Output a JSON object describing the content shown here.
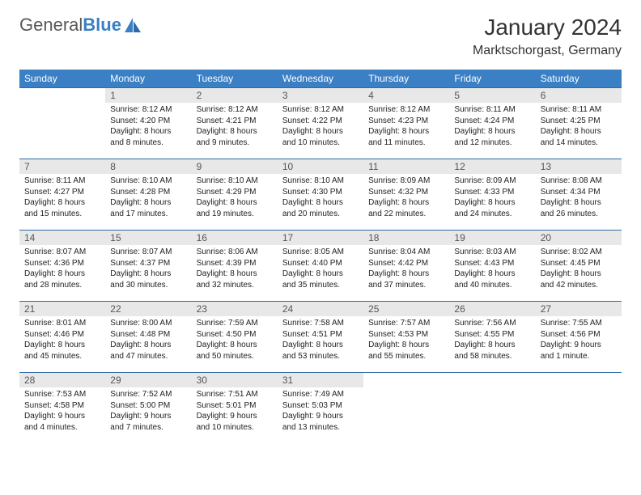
{
  "logo": {
    "word1": "General",
    "word2": "Blue"
  },
  "title": "January 2024",
  "location": "Marktschorgast, Germany",
  "colors": {
    "header_bg": "#3b7fc4",
    "header_text": "#ffffff",
    "row_border": "#2f6aa8",
    "daynum_bg": "#e8e8e8",
    "daynum_text": "#555555",
    "body_text": "#222222",
    "title_text": "#333333",
    "page_bg": "#ffffff"
  },
  "typography": {
    "title_fontsize": 28,
    "location_fontsize": 16,
    "dow_fontsize": 12,
    "daynum_fontsize": 12,
    "cell_fontsize": 10
  },
  "days_of_week": [
    "Sunday",
    "Monday",
    "Tuesday",
    "Wednesday",
    "Thursday",
    "Friday",
    "Saturday"
  ],
  "weeks": [
    [
      {
        "n": "",
        "sr": "",
        "ss": "",
        "dl": ""
      },
      {
        "n": "1",
        "sr": "Sunrise: 8:12 AM",
        "ss": "Sunset: 4:20 PM",
        "dl": "Daylight: 8 hours and 8 minutes."
      },
      {
        "n": "2",
        "sr": "Sunrise: 8:12 AM",
        "ss": "Sunset: 4:21 PM",
        "dl": "Daylight: 8 hours and 9 minutes."
      },
      {
        "n": "3",
        "sr": "Sunrise: 8:12 AM",
        "ss": "Sunset: 4:22 PM",
        "dl": "Daylight: 8 hours and 10 minutes."
      },
      {
        "n": "4",
        "sr": "Sunrise: 8:12 AM",
        "ss": "Sunset: 4:23 PM",
        "dl": "Daylight: 8 hours and 11 minutes."
      },
      {
        "n": "5",
        "sr": "Sunrise: 8:11 AM",
        "ss": "Sunset: 4:24 PM",
        "dl": "Daylight: 8 hours and 12 minutes."
      },
      {
        "n": "6",
        "sr": "Sunrise: 8:11 AM",
        "ss": "Sunset: 4:25 PM",
        "dl": "Daylight: 8 hours and 14 minutes."
      }
    ],
    [
      {
        "n": "7",
        "sr": "Sunrise: 8:11 AM",
        "ss": "Sunset: 4:27 PM",
        "dl": "Daylight: 8 hours and 15 minutes."
      },
      {
        "n": "8",
        "sr": "Sunrise: 8:10 AM",
        "ss": "Sunset: 4:28 PM",
        "dl": "Daylight: 8 hours and 17 minutes."
      },
      {
        "n": "9",
        "sr": "Sunrise: 8:10 AM",
        "ss": "Sunset: 4:29 PM",
        "dl": "Daylight: 8 hours and 19 minutes."
      },
      {
        "n": "10",
        "sr": "Sunrise: 8:10 AM",
        "ss": "Sunset: 4:30 PM",
        "dl": "Daylight: 8 hours and 20 minutes."
      },
      {
        "n": "11",
        "sr": "Sunrise: 8:09 AM",
        "ss": "Sunset: 4:32 PM",
        "dl": "Daylight: 8 hours and 22 minutes."
      },
      {
        "n": "12",
        "sr": "Sunrise: 8:09 AM",
        "ss": "Sunset: 4:33 PM",
        "dl": "Daylight: 8 hours and 24 minutes."
      },
      {
        "n": "13",
        "sr": "Sunrise: 8:08 AM",
        "ss": "Sunset: 4:34 PM",
        "dl": "Daylight: 8 hours and 26 minutes."
      }
    ],
    [
      {
        "n": "14",
        "sr": "Sunrise: 8:07 AM",
        "ss": "Sunset: 4:36 PM",
        "dl": "Daylight: 8 hours and 28 minutes."
      },
      {
        "n": "15",
        "sr": "Sunrise: 8:07 AM",
        "ss": "Sunset: 4:37 PM",
        "dl": "Daylight: 8 hours and 30 minutes."
      },
      {
        "n": "16",
        "sr": "Sunrise: 8:06 AM",
        "ss": "Sunset: 4:39 PM",
        "dl": "Daylight: 8 hours and 32 minutes."
      },
      {
        "n": "17",
        "sr": "Sunrise: 8:05 AM",
        "ss": "Sunset: 4:40 PM",
        "dl": "Daylight: 8 hours and 35 minutes."
      },
      {
        "n": "18",
        "sr": "Sunrise: 8:04 AM",
        "ss": "Sunset: 4:42 PM",
        "dl": "Daylight: 8 hours and 37 minutes."
      },
      {
        "n": "19",
        "sr": "Sunrise: 8:03 AM",
        "ss": "Sunset: 4:43 PM",
        "dl": "Daylight: 8 hours and 40 minutes."
      },
      {
        "n": "20",
        "sr": "Sunrise: 8:02 AM",
        "ss": "Sunset: 4:45 PM",
        "dl": "Daylight: 8 hours and 42 minutes."
      }
    ],
    [
      {
        "n": "21",
        "sr": "Sunrise: 8:01 AM",
        "ss": "Sunset: 4:46 PM",
        "dl": "Daylight: 8 hours and 45 minutes."
      },
      {
        "n": "22",
        "sr": "Sunrise: 8:00 AM",
        "ss": "Sunset: 4:48 PM",
        "dl": "Daylight: 8 hours and 47 minutes."
      },
      {
        "n": "23",
        "sr": "Sunrise: 7:59 AM",
        "ss": "Sunset: 4:50 PM",
        "dl": "Daylight: 8 hours and 50 minutes."
      },
      {
        "n": "24",
        "sr": "Sunrise: 7:58 AM",
        "ss": "Sunset: 4:51 PM",
        "dl": "Daylight: 8 hours and 53 minutes."
      },
      {
        "n": "25",
        "sr": "Sunrise: 7:57 AM",
        "ss": "Sunset: 4:53 PM",
        "dl": "Daylight: 8 hours and 55 minutes."
      },
      {
        "n": "26",
        "sr": "Sunrise: 7:56 AM",
        "ss": "Sunset: 4:55 PM",
        "dl": "Daylight: 8 hours and 58 minutes."
      },
      {
        "n": "27",
        "sr": "Sunrise: 7:55 AM",
        "ss": "Sunset: 4:56 PM",
        "dl": "Daylight: 9 hours and 1 minute."
      }
    ],
    [
      {
        "n": "28",
        "sr": "Sunrise: 7:53 AM",
        "ss": "Sunset: 4:58 PM",
        "dl": "Daylight: 9 hours and 4 minutes."
      },
      {
        "n": "29",
        "sr": "Sunrise: 7:52 AM",
        "ss": "Sunset: 5:00 PM",
        "dl": "Daylight: 9 hours and 7 minutes."
      },
      {
        "n": "30",
        "sr": "Sunrise: 7:51 AM",
        "ss": "Sunset: 5:01 PM",
        "dl": "Daylight: 9 hours and 10 minutes."
      },
      {
        "n": "31",
        "sr": "Sunrise: 7:49 AM",
        "ss": "Sunset: 5:03 PM",
        "dl": "Daylight: 9 hours and 13 minutes."
      },
      {
        "n": "",
        "sr": "",
        "ss": "",
        "dl": ""
      },
      {
        "n": "",
        "sr": "",
        "ss": "",
        "dl": ""
      },
      {
        "n": "",
        "sr": "",
        "ss": "",
        "dl": ""
      }
    ]
  ]
}
